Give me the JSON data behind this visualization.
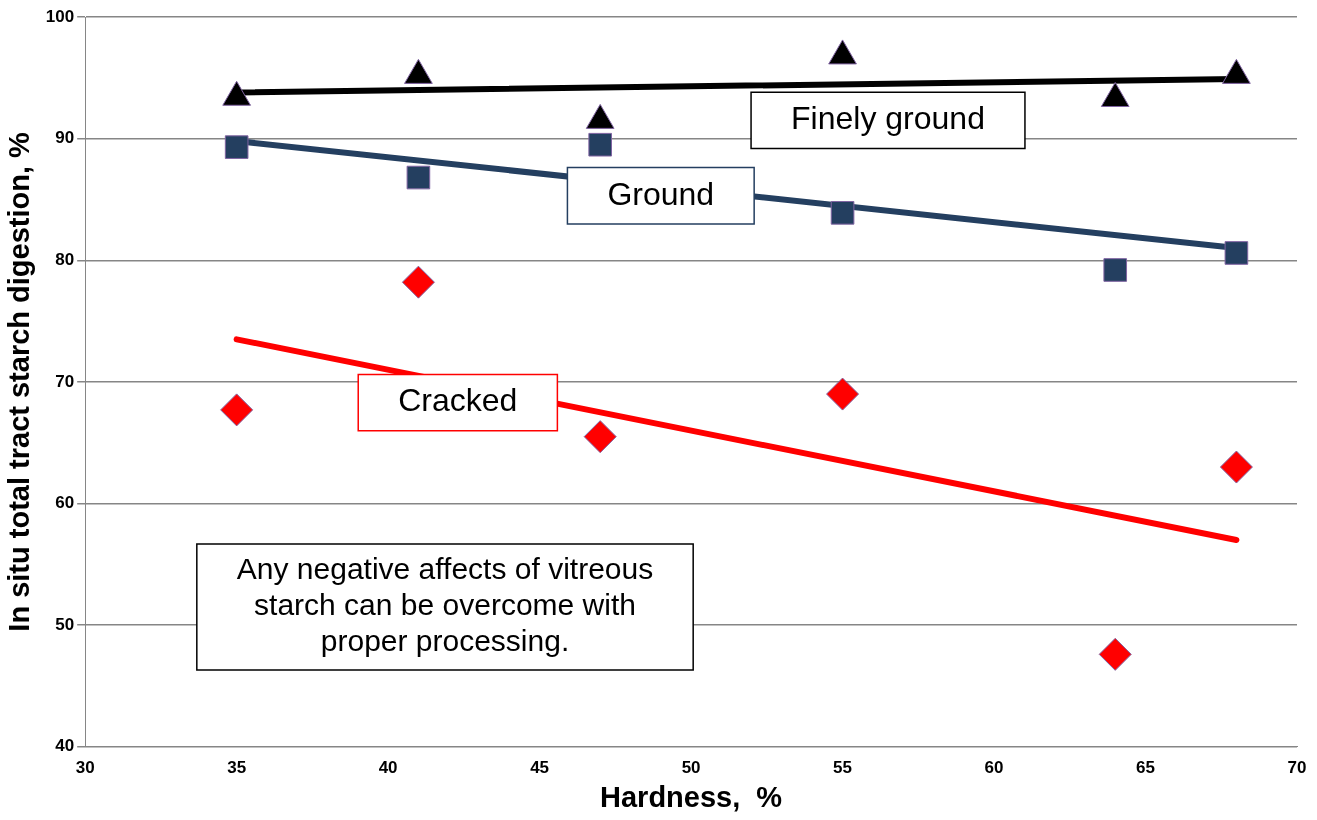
{
  "chart_data": {
    "type": "scatter",
    "xlabel": "Hardness,  %",
    "ylabel": "In situ total tract starch digestion, %",
    "xlim": [
      30,
      70
    ],
    "xticks": [
      30,
      35,
      40,
      45,
      50,
      55,
      60,
      65,
      70
    ],
    "ylim": [
      40,
      100
    ],
    "yticks": [
      40,
      50,
      60,
      70,
      80,
      90,
      100
    ],
    "grid": "y",
    "legend": false,
    "annotations": [
      "Any negative affects of vitreous starch can be overcome with proper processing."
    ],
    "series": [
      {
        "type": "scatter",
        "name": "Finely ground",
        "color": "#000000",
        "marker": "triangle",
        "x": [
          35,
          41,
          47,
          55,
          64,
          68
        ],
        "values": [
          93.4,
          95.2,
          91.5,
          96.8,
          93.3,
          95.2
        ]
      },
      {
        "type": "line",
        "color": "#000000",
        "marker": "none",
        "x": [
          35,
          68
        ],
        "values": [
          93.8,
          94.9
        ]
      },
      {
        "type": "scatter",
        "name": "Ground",
        "color": "#243f60",
        "marker": "square",
        "x": [
          35,
          41,
          47,
          55,
          64,
          68
        ],
        "values": [
          89.3,
          86.8,
          89.5,
          83.9,
          79.2,
          80.6
        ]
      },
      {
        "type": "line",
        "color": "#243f60",
        "marker": "none",
        "x": [
          35,
          68
        ],
        "values": [
          89.8,
          81.0
        ]
      },
      {
        "type": "scatter",
        "name": "Cracked",
        "color": "#ff0000",
        "marker": "diamond",
        "x": [
          35,
          41,
          47,
          55,
          64,
          68
        ],
        "values": [
          67.7,
          78.2,
          65.5,
          69.0,
          47.6,
          63.0
        ]
      },
      {
        "type": "line",
        "color": "#ff0000",
        "marker": "none",
        "x": [
          35,
          68
        ],
        "values": [
          73.5,
          57.0
        ]
      }
    ]
  }
}
